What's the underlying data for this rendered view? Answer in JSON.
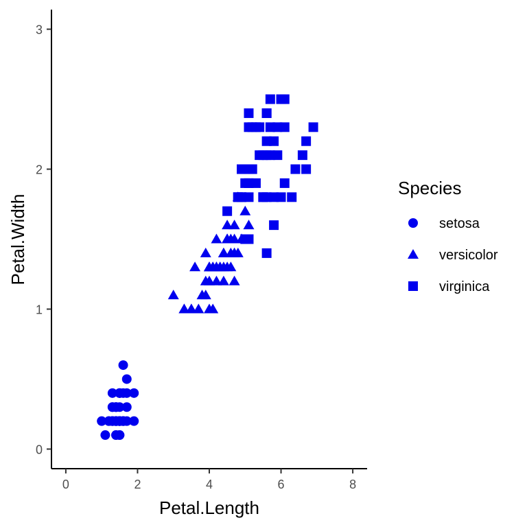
{
  "chart_data": {
    "type": "scatter",
    "xlabel": "Petal.Length",
    "ylabel": "Petal.Width",
    "xlim": [
      -0.4,
      8.4
    ],
    "ylim": [
      -0.14,
      3.14
    ],
    "xticks": [
      0,
      2,
      4,
      6,
      8
    ],
    "yticks": [
      0,
      1,
      2,
      3
    ],
    "grid": false,
    "legend": {
      "title": "Species",
      "position": "right"
    },
    "marker_color": "#0000EE",
    "series": [
      {
        "name": "setosa",
        "marker": "circle",
        "points": [
          [
            1.4,
            0.2
          ],
          [
            1.4,
            0.2
          ],
          [
            1.3,
            0.2
          ],
          [
            1.5,
            0.2
          ],
          [
            1.4,
            0.2
          ],
          [
            1.7,
            0.4
          ],
          [
            1.4,
            0.3
          ],
          [
            1.5,
            0.2
          ],
          [
            1.4,
            0.2
          ],
          [
            1.5,
            0.1
          ],
          [
            1.5,
            0.2
          ],
          [
            1.6,
            0.2
          ],
          [
            1.4,
            0.1
          ],
          [
            1.1,
            0.1
          ],
          [
            1.2,
            0.2
          ],
          [
            1.5,
            0.4
          ],
          [
            1.3,
            0.4
          ],
          [
            1.4,
            0.3
          ],
          [
            1.7,
            0.3
          ],
          [
            1.5,
            0.3
          ],
          [
            1.7,
            0.2
          ],
          [
            1.5,
            0.4
          ],
          [
            1.0,
            0.2
          ],
          [
            1.7,
            0.5
          ],
          [
            1.9,
            0.2
          ],
          [
            1.6,
            0.2
          ],
          [
            1.6,
            0.4
          ],
          [
            1.5,
            0.2
          ],
          [
            1.4,
            0.2
          ],
          [
            1.6,
            0.2
          ],
          [
            1.6,
            0.2
          ],
          [
            1.5,
            0.4
          ],
          [
            1.5,
            0.1
          ],
          [
            1.4,
            0.2
          ],
          [
            1.5,
            0.2
          ],
          [
            1.2,
            0.2
          ],
          [
            1.3,
            0.2
          ],
          [
            1.4,
            0.1
          ],
          [
            1.3,
            0.2
          ],
          [
            1.5,
            0.2
          ],
          [
            1.3,
            0.3
          ],
          [
            1.3,
            0.3
          ],
          [
            1.3,
            0.2
          ],
          [
            1.6,
            0.6
          ],
          [
            1.9,
            0.4
          ],
          [
            1.4,
            0.3
          ],
          [
            1.6,
            0.2
          ],
          [
            1.4,
            0.2
          ],
          [
            1.5,
            0.2
          ],
          [
            1.4,
            0.2
          ]
        ]
      },
      {
        "name": "versicolor",
        "marker": "triangle",
        "points": [
          [
            4.7,
            1.4
          ],
          [
            4.5,
            1.5
          ],
          [
            4.9,
            1.5
          ],
          [
            4.0,
            1.3
          ],
          [
            4.6,
            1.5
          ],
          [
            4.5,
            1.3
          ],
          [
            4.7,
            1.6
          ],
          [
            3.3,
            1.0
          ],
          [
            4.6,
            1.3
          ],
          [
            3.9,
            1.4
          ],
          [
            3.5,
            1.0
          ],
          [
            4.2,
            1.5
          ],
          [
            4.0,
            1.0
          ],
          [
            4.7,
            1.4
          ],
          [
            3.6,
            1.3
          ],
          [
            4.4,
            1.4
          ],
          [
            4.5,
            1.5
          ],
          [
            4.1,
            1.0
          ],
          [
            4.5,
            1.5
          ],
          [
            3.9,
            1.1
          ],
          [
            4.8,
            1.8
          ],
          [
            4.0,
            1.3
          ],
          [
            4.9,
            1.5
          ],
          [
            4.7,
            1.2
          ],
          [
            4.3,
            1.3
          ],
          [
            4.4,
            1.4
          ],
          [
            4.8,
            1.4
          ],
          [
            5.0,
            1.7
          ],
          [
            4.5,
            1.5
          ],
          [
            3.5,
            1.0
          ],
          [
            3.8,
            1.1
          ],
          [
            3.7,
            1.0
          ],
          [
            3.9,
            1.2
          ],
          [
            5.1,
            1.6
          ],
          [
            4.5,
            1.5
          ],
          [
            4.5,
            1.6
          ],
          [
            4.7,
            1.5
          ],
          [
            4.4,
            1.3
          ],
          [
            4.1,
            1.3
          ],
          [
            4.0,
            1.3
          ],
          [
            4.4,
            1.2
          ],
          [
            4.6,
            1.4
          ],
          [
            4.0,
            1.2
          ],
          [
            3.3,
            1.0
          ],
          [
            4.2,
            1.3
          ],
          [
            4.2,
            1.2
          ],
          [
            4.2,
            1.3
          ],
          [
            4.3,
            1.3
          ],
          [
            3.0,
            1.1
          ],
          [
            4.1,
            1.3
          ]
        ]
      },
      {
        "name": "virginica",
        "marker": "square",
        "points": [
          [
            6.0,
            2.5
          ],
          [
            5.1,
            1.9
          ],
          [
            5.9,
            2.1
          ],
          [
            5.6,
            1.8
          ],
          [
            5.8,
            2.2
          ],
          [
            6.6,
            2.1
          ],
          [
            4.5,
            1.7
          ],
          [
            6.3,
            1.8
          ],
          [
            5.8,
            1.8
          ],
          [
            6.1,
            2.5
          ],
          [
            5.1,
            2.0
          ],
          [
            5.3,
            1.9
          ],
          [
            5.5,
            2.1
          ],
          [
            5.0,
            2.0
          ],
          [
            5.1,
            2.4
          ],
          [
            5.3,
            2.3
          ],
          [
            5.5,
            1.8
          ],
          [
            6.7,
            2.2
          ],
          [
            6.9,
            2.3
          ],
          [
            5.0,
            1.5
          ],
          [
            5.7,
            2.3
          ],
          [
            4.9,
            2.0
          ],
          [
            6.7,
            2.0
          ],
          [
            4.9,
            1.8
          ],
          [
            5.7,
            2.1
          ],
          [
            6.0,
            1.8
          ],
          [
            4.8,
            1.8
          ],
          [
            4.9,
            1.8
          ],
          [
            5.6,
            2.1
          ],
          [
            5.8,
            1.6
          ],
          [
            6.1,
            1.9
          ],
          [
            6.4,
            2.0
          ],
          [
            5.6,
            2.2
          ],
          [
            5.1,
            1.5
          ],
          [
            5.6,
            1.4
          ],
          [
            6.1,
            2.3
          ],
          [
            5.6,
            2.4
          ],
          [
            5.5,
            1.8
          ],
          [
            4.8,
            1.8
          ],
          [
            5.4,
            2.1
          ],
          [
            5.6,
            2.4
          ],
          [
            5.1,
            2.3
          ],
          [
            5.1,
            1.9
          ],
          [
            5.9,
            2.3
          ],
          [
            5.7,
            2.5
          ],
          [
            5.2,
            2.3
          ],
          [
            5.0,
            1.9
          ],
          [
            5.2,
            2.0
          ],
          [
            5.4,
            2.3
          ],
          [
            5.1,
            1.8
          ]
        ]
      }
    ]
  }
}
